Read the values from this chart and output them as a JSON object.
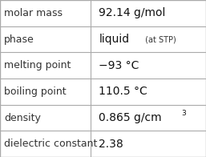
{
  "rows": [
    {
      "label": "molar mass",
      "value": "92.14 g/mol",
      "value_sup": null,
      "value_small": null
    },
    {
      "label": "phase",
      "value": "liquid",
      "value_sup": null,
      "value_small": " (at STP)"
    },
    {
      "label": "melting point",
      "value": "−93 °C",
      "value_sup": null,
      "value_small": null
    },
    {
      "label": "boiling point",
      "value": "110.5 °C",
      "value_sup": null,
      "value_small": null
    },
    {
      "label": "density",
      "value": "0.865 g/cm",
      "value_sup": "3",
      "value_small": null
    },
    {
      "label": "dielectric constant",
      "value": "2.38",
      "value_sup": null,
      "value_small": null
    }
  ],
  "col_split": 0.44,
  "bg_color": "#ffffff",
  "border_color": "#aaaaaa",
  "label_color": "#333333",
  "value_color": "#111111",
  "label_fontsize": 9,
  "value_fontsize": 10,
  "small_fontsize": 7,
  "sup_fontsize": 6.5
}
